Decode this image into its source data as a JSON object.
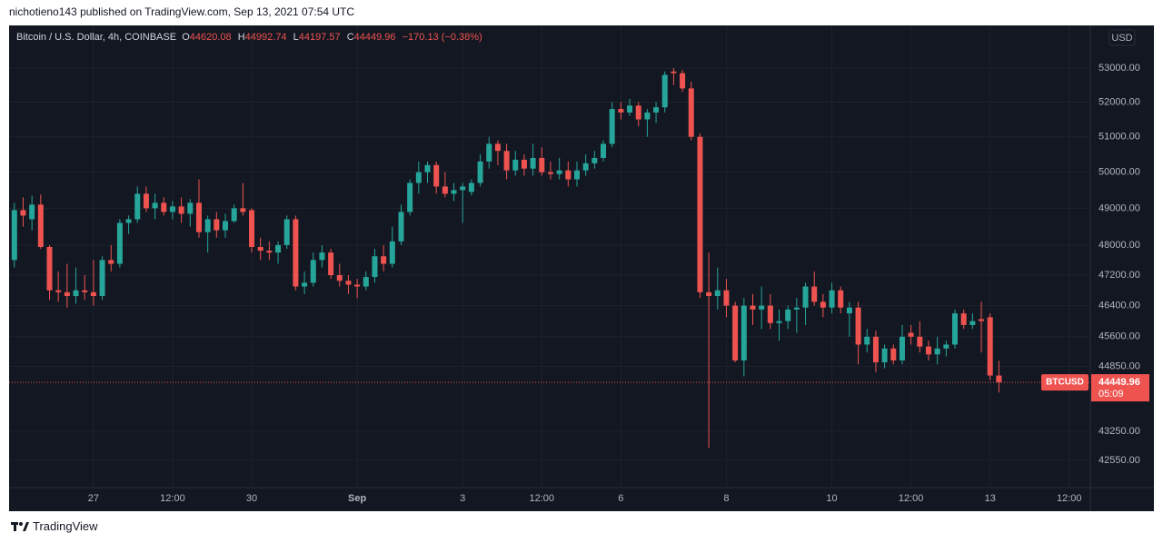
{
  "chart_data": {
    "type": "candlestick",
    "publisher_line": "nichotieno143 published on TradingView.com, Sep 13, 2021 07:54 UTC",
    "title": "Bitcoin / U.S. Dollar, 4h, COINBASE",
    "ohlc_labels": [
      "O",
      "H",
      "L",
      "C"
    ],
    "change": "−170.13 (−0.38%)",
    "currency": "USD",
    "symbol": "BTCUSD",
    "countdown": "05:09",
    "brand": "TradingView",
    "log_scale": true,
    "grid": true,
    "up_color": "#26a69a",
    "down_color": "#ef5350",
    "ylim": [
      41906,
      54282
    ],
    "yticks": [
      {
        "value": 53000,
        "label": "53000.00"
      },
      {
        "value": 52000,
        "label": "52000.00"
      },
      {
        "value": 51000,
        "label": "51000.00"
      },
      {
        "value": 50000,
        "label": "50000.00"
      },
      {
        "value": 49000,
        "label": "49000.00"
      },
      {
        "value": 48000,
        "label": "48000.00"
      },
      {
        "value": 47200,
        "label": "47200.00"
      },
      {
        "value": 46400,
        "label": "46400.00"
      },
      {
        "value": 45600,
        "label": "45600.00"
      },
      {
        "value": 44850,
        "label": "44850.00"
      },
      {
        "value": 43250,
        "label": "43250.00"
      },
      {
        "value": 42550,
        "label": "42550.00"
      }
    ],
    "xlim": [
      -0.6,
      122.4
    ],
    "xticks": [
      {
        "value": 9,
        "label": "27"
      },
      {
        "value": 18,
        "label": "12:00"
      },
      {
        "value": 27,
        "label": "30"
      },
      {
        "value": 39,
        "label": "Sep"
      },
      {
        "value": 51,
        "label": "3"
      },
      {
        "value": 60,
        "label": "12:00"
      },
      {
        "value": 69,
        "label": "6"
      },
      {
        "value": 81,
        "label": "8"
      },
      {
        "value": 93,
        "label": "10"
      },
      {
        "value": 102,
        "label": "12:00"
      },
      {
        "value": 111,
        "label": "13"
      },
      {
        "value": 120,
        "label": "12:00"
      }
    ],
    "open": [
      47600,
      48950,
      48700,
      49100,
      47950,
      46800,
      46750,
      46650,
      46800,
      46750,
      46650,
      47600,
      47500,
      48600,
      48700,
      49400,
      49000,
      49150,
      48900,
      49050,
      48850,
      49150,
      48350,
      48700,
      48400,
      48650,
      49000,
      48950,
      47950,
      47850,
      47800,
      48000,
      48700,
      46900,
      47000,
      47600,
      47800,
      47200,
      47050,
      46950,
      46900,
      47150,
      47700,
      47500,
      48100,
      48900,
      49700,
      50000,
      50200,
      49600,
      49400,
      49500,
      49450,
      49700,
      50300,
      50800,
      50600,
      50050,
      50350,
      50100,
      50400,
      50000,
      49950,
      50050,
      49800,
      50050,
      50250,
      50400,
      50800,
      51800,
      51700,
      51900,
      51500,
      51700,
      51850,
      52900,
      52850,
      52400,
      51000,
      46750,
      46650,
      46800,
      46400,
      45000,
      46400,
      46300,
      46400,
      45950,
      46000,
      46300,
      46350,
      46900,
      46500,
      46350,
      46800,
      46200,
      46350,
      45400,
      45600,
      44950,
      45300,
      45000,
      45700,
      45600,
      45350,
      45150,
      45300,
      45400,
      46200,
      45900,
      46050,
      46100,
      44620.08
    ],
    "high": [
      49150,
      49300,
      49350,
      49380,
      48000,
      47300,
      47500,
      47400,
      47200,
      47600,
      47700,
      48000,
      48700,
      48800,
      49600,
      49600,
      49400,
      49300,
      49200,
      49300,
      49250,
      49800,
      48800,
      48900,
      48850,
      49100,
      49700,
      49000,
      48200,
      48100,
      48100,
      48800,
      48800,
      47300,
      47800,
      48000,
      47900,
      47500,
      47200,
      47100,
      47300,
      47900,
      48000,
      48500,
      49100,
      49800,
      50300,
      50300,
      50300,
      50000,
      49700,
      49700,
      49800,
      50500,
      51000,
      50900,
      50800,
      50600,
      50500,
      50800,
      50700,
      50300,
      50400,
      50300,
      50300,
      50500,
      50600,
      50900,
      52000,
      52000,
      52100,
      52000,
      51800,
      52000,
      52900,
      53000,
      52950,
      52600,
      51100,
      47800,
      47400,
      47100,
      46500,
      46600,
      46700,
      46900,
      46700,
      46300,
      46400,
      46600,
      47000,
      47300,
      46700,
      47000,
      46900,
      46500,
      46500,
      45800,
      45750,
      45400,
      45400,
      45900,
      45900,
      46000,
      45500,
      45600,
      45500,
      46300,
      46300,
      46200,
      46500,
      46200,
      44992.74
    ],
    "low": [
      47400,
      48500,
      48400,
      47900,
      46550,
      46500,
      46350,
      46450,
      46550,
      46400,
      46550,
      47300,
      47400,
      48300,
      48600,
      48900,
      48700,
      48800,
      48700,
      48600,
      48500,
      48200,
      47800,
      48200,
      48200,
      48600,
      48800,
      47800,
      47600,
      47600,
      47500,
      47900,
      46800,
      46700,
      46900,
      47400,
      47100,
      46900,
      46700,
      46600,
      46800,
      47000,
      47300,
      47400,
      48000,
      48800,
      49400,
      49700,
      49400,
      49300,
      49200,
      48600,
      49350,
      49600,
      50100,
      50200,
      49800,
      49900,
      49900,
      49900,
      49900,
      49800,
      49800,
      49600,
      49600,
      49900,
      50100,
      50300,
      50700,
      51500,
      51600,
      51300,
      51000,
      51400,
      51700,
      52500,
      52300,
      50900,
      46600,
      42850,
      46300,
      46100,
      44950,
      44600,
      45900,
      45800,
      45800,
      45500,
      45800,
      45700,
      45900,
      46400,
      46100,
      46200,
      46200,
      45600,
      44900,
      45200,
      44700,
      44800,
      44900,
      44900,
      45400,
      45200,
      45000,
      44900,
      45100,
      45300,
      45800,
      45800,
      45200,
      44500,
      44197.57
    ],
    "close": [
      48950,
      48800,
      49100,
      47950,
      46800,
      46750,
      46650,
      46800,
      46750,
      46650,
      47600,
      47500,
      48600,
      48700,
      49400,
      49000,
      49150,
      48900,
      49050,
      48850,
      49150,
      48350,
      48700,
      48400,
      48650,
      49000,
      48900,
      47950,
      47850,
      47800,
      48000,
      48700,
      46900,
      47000,
      47600,
      47800,
      47200,
      47050,
      46950,
      46900,
      47150,
      47700,
      47500,
      48100,
      48900,
      49700,
      50000,
      50200,
      49600,
      49400,
      49500,
      49600,
      49700,
      50300,
      50800,
      50600,
      50050,
      50350,
      50100,
      50400,
      50000,
      49950,
      50050,
      49800,
      50050,
      50250,
      50400,
      50800,
      51800,
      51700,
      51900,
      51500,
      51700,
      51850,
      52800,
      52850,
      52400,
      51000,
      46750,
      46650,
      46800,
      46400,
      45000,
      46400,
      46300,
      46400,
      45950,
      46000,
      46300,
      46350,
      46900,
      46500,
      46350,
      46800,
      46350,
      46350,
      45400,
      45600,
      44950,
      45300,
      45000,
      45600,
      45600,
      45350,
      45150,
      45300,
      45400,
      46200,
      45900,
      46000,
      46000,
      44620.08,
      44449.96
    ]
  }
}
